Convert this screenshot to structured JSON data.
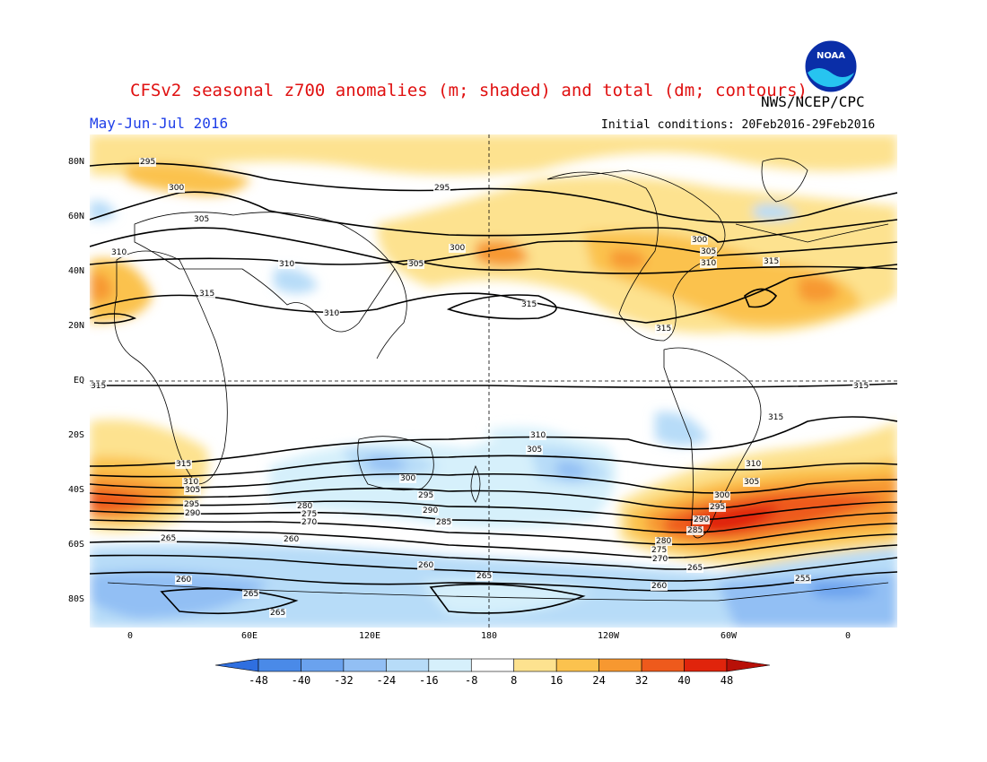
{
  "header": {
    "title": "CFSv2 seasonal z700 anomalies (m; shaded) and total (dm; contours)",
    "org": "NWS/NCEP/CPC",
    "period": "May-Jun-Jul 2016",
    "initial_conditions": "Initial conditions: 20Feb2016-29Feb2016",
    "logo_text": "NOAA"
  },
  "map": {
    "lat_ticks": [
      "80N",
      "60N",
      "40N",
      "20N",
      "EQ",
      "20S",
      "40S",
      "60S",
      "80S"
    ],
    "lon_ticks": [
      "0",
      "60E",
      "120E",
      "180",
      "120W",
      "60W",
      "0"
    ],
    "contour_labels": [
      "295",
      "300",
      "305",
      "310",
      "315",
      "310",
      "305",
      "300",
      "295",
      "290",
      "285",
      "280",
      "275",
      "270",
      "265",
      "260",
      "255"
    ]
  },
  "colorbar": {
    "labels": [
      "-48",
      "-40",
      "-32",
      "-24",
      "-16",
      "-8",
      "8",
      "16",
      "24",
      "32",
      "40",
      "48"
    ],
    "colors": [
      "#2f6fe0",
      "#4a8ae8",
      "#6aa2ee",
      "#92bff4",
      "#b7dcf8",
      "#d6f0fb",
      "#ffffff",
      "#fde28f",
      "#fbc24e",
      "#f79830",
      "#ee5a1c",
      "#e0240c",
      "#b81008"
    ]
  }
}
